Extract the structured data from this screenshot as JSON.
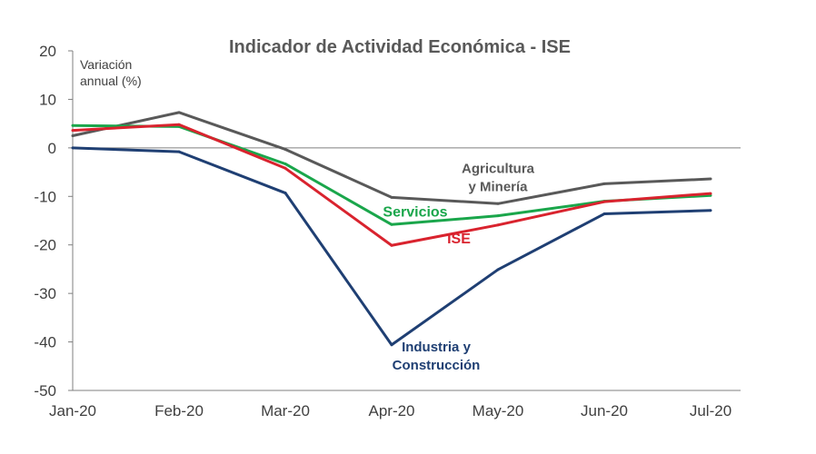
{
  "chart_data": {
    "type": "line",
    "title": "Indicador de Actividad Económica - ISE",
    "ylabel_line1": "Variación",
    "ylabel_line2": "annual (%)",
    "xlabel": "",
    "categories": [
      "Jan-20",
      "Feb-20",
      "Mar-20",
      "Apr-20",
      "May-20",
      "Jun-20",
      "Jul-20"
    ],
    "ylim": [
      -50,
      20
    ],
    "yticks": [
      20,
      10,
      0,
      -10,
      -20,
      -30,
      -40,
      -50
    ],
    "series": [
      {
        "name": "Agricultura y Minería",
        "label_lines": [
          "Agricultura",
          "y Minería"
        ],
        "color": "#595959",
        "values": [
          2.5,
          7.3,
          -0.3,
          -10.2,
          -11.5,
          -7.4,
          -6.4
        ]
      },
      {
        "name": "Servicios",
        "label_lines": [
          "Servicios"
        ],
        "color": "#1aa64b",
        "values": [
          4.6,
          4.4,
          -3.3,
          -15.8,
          -14.0,
          -11.0,
          -9.8
        ]
      },
      {
        "name": "ISE",
        "label_lines": [
          "ISE"
        ],
        "color": "#d9232e",
        "values": [
          3.6,
          4.8,
          -4.2,
          -20.1,
          -15.9,
          -11.1,
          -9.4
        ]
      },
      {
        "name": "Industria y Construcción",
        "label_lines": [
          "Industria y",
          "Construcción"
        ],
        "color": "#1f3f73",
        "values": [
          0.0,
          -0.8,
          -9.3,
          -40.6,
          -25.1,
          -13.6,
          -12.9
        ]
      }
    ]
  }
}
